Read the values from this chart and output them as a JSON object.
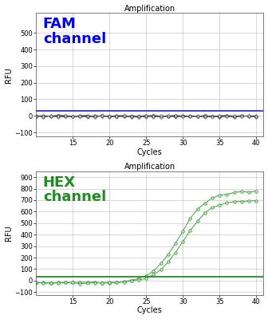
{
  "title": "Amplification",
  "xlabel": "Cycles",
  "ylabel": "RFU",
  "fam": {
    "label": "FAM\nchannel",
    "label_color": "#0000ff",
    "ylim": [
      -125,
      620
    ],
    "yticks": [
      -100,
      0,
      100,
      200,
      300,
      400,
      500
    ],
    "threshold": 28,
    "threshold_color": "#3333cc",
    "line_color": "#555555",
    "marker_facecolor": "#dddddd",
    "marker_edgecolor": "#444444",
    "num_curves": 8
  },
  "hex": {
    "label": "HEX\nchannel",
    "label_color": "#228B22",
    "ylim": [
      -125,
      950
    ],
    "yticks": [
      -100,
      0,
      100,
      200,
      300,
      400,
      500,
      600,
      700,
      800,
      900
    ],
    "threshold": 35,
    "threshold_color": "#228B22",
    "line_color": "#3aaa3a",
    "marker_facecolor": "#cceecc",
    "marker_edgecolor": "#228B22",
    "num_curves": 2
  },
  "xlim": [
    10,
    41
  ],
  "xticks": [
    15,
    20,
    25,
    30,
    35,
    40
  ],
  "background_color": "#ffffff",
  "grid_color": "#bbbbbb",
  "title_fontsize": 7,
  "label_fontsize": 7,
  "tick_fontsize": 6,
  "channel_label_fontsize": 13,
  "figsize": [
    3.36,
    4.0
  ],
  "dpi": 100
}
